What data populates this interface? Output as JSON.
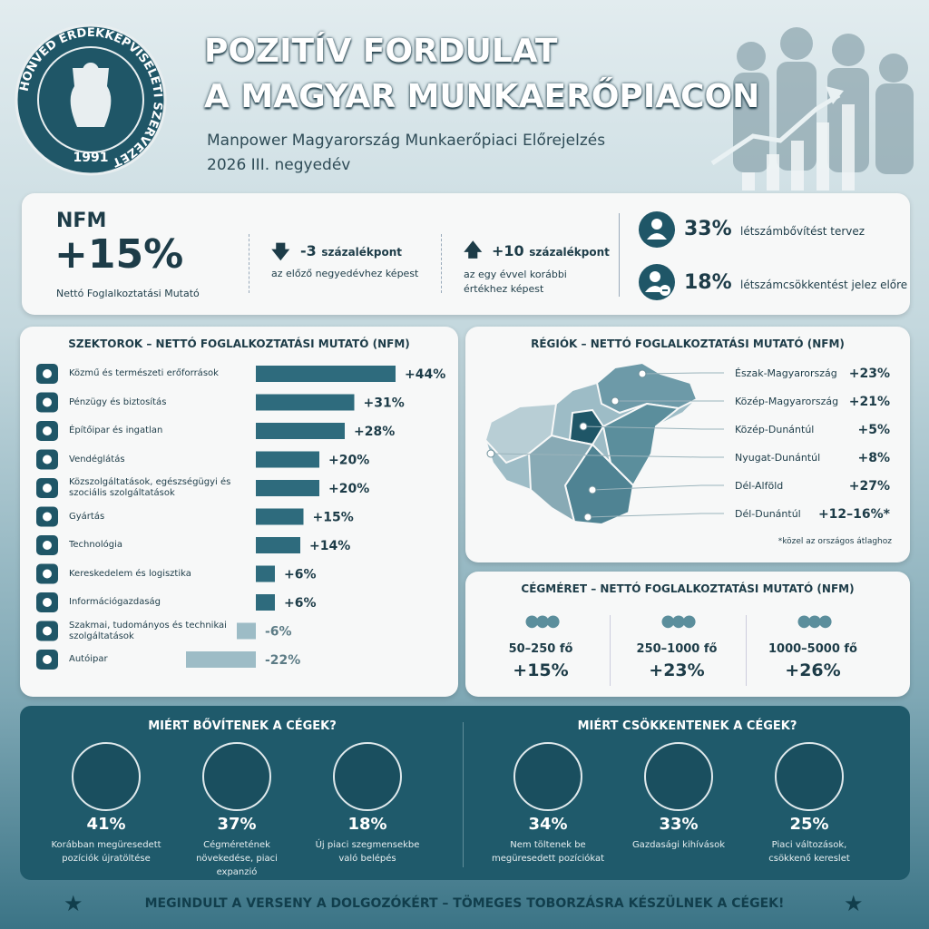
{
  "header": {
    "title_line1": "POZITÍV FORDULAT",
    "title_line2": "A MAGYAR MUNKAERŐPIACON",
    "subtitle_line1": "Manpower Magyarország Munkaerőpiaci Előrejelzés",
    "subtitle_line2": "2026 III. negyedév",
    "logo_text": "HONVÉD ÉRDEKKÉPVISELETI SZERVEZET",
    "logo_year": "1991"
  },
  "kpis": {
    "nfm_label": "NFM",
    "nfm_value": "+15%",
    "nfm_caption": "Nettó Foglalkoztatási Mutató",
    "change_quarter": {
      "value": "-3",
      "unit": "százalékpont",
      "caption": "az előző negyedévhez képest"
    },
    "change_year": {
      "value": "+10",
      "unit": "százalékpont",
      "caption": "az egy évvel korábbi értékhez képest"
    },
    "hire": {
      "value": "33%",
      "text": "létszámbővítést tervez"
    },
    "cut": {
      "value": "18%",
      "text": "létszámcsökkentést jelez előre"
    }
  },
  "chart_data": {
    "type": "bar",
    "orientation": "horizontal",
    "title": "SZEKTOROK – NETTÓ FOGLALKOZTATÁSI MUTATÓ (NFM)",
    "categories": [
      "Közmű és természeti erőforrások",
      "Pénzügy és biztosítás",
      "Építőipar és ingatlan",
      "Vendéglátás",
      "Közszolgáltatások, egészségügyi és szociális szolgáltatások",
      "Gyártás",
      "Technológia",
      "Kereskedelem és logisztika",
      "Információgazdaság",
      "Szakmai, tudományos és technikai szolgáltatások",
      "Autóipar"
    ],
    "values": [
      44,
      31,
      28,
      20,
      20,
      15,
      14,
      6,
      6,
      -6,
      -22
    ],
    "value_labels": [
      "+44%",
      "+31%",
      "+28%",
      "+20%",
      "+20%",
      "+15%",
      "+14%",
      "+6%",
      "+6%",
      "-6%",
      "-22%"
    ],
    "color": "#2e6b7d",
    "negative_color": "#9dbcc6"
  },
  "regions": {
    "title": "RÉGIÓK – NETTÓ FOGLALKOZTATÁSI MUTATÓ (NFM)",
    "items": [
      {
        "name": "Észak-Magyarország",
        "value": "+23%"
      },
      {
        "name": "Közép-Magyarország",
        "value": "+21%"
      },
      {
        "name": "Közép-Dunántúl",
        "value": "+5%"
      },
      {
        "name": "Nyugat-Dunántúl",
        "value": "+8%"
      },
      {
        "name": "Dél-Alföld",
        "value": "+27%"
      },
      {
        "name": "Dél-Dunántúl",
        "value": "+12–16%*"
      }
    ],
    "note": "*közel az országos átlaghoz"
  },
  "company_size": {
    "title": "CÉGMÉRET – NETTÓ FOGLALKOZTATÁSI MUTATÓ (NFM)",
    "items": [
      {
        "size": "50–250 fő",
        "value": "+15%"
      },
      {
        "size": "250–1000 fő",
        "value": "+23%"
      },
      {
        "size": "1000–5000 fő",
        "value": "+26%"
      }
    ]
  },
  "reasons": {
    "grow": {
      "title": "MIÉRT BŐVÍTENEK A CÉGEK?",
      "items": [
        {
          "value": "41%",
          "text": "Korábban megüresedett pozíciók újratöltése"
        },
        {
          "value": "37%",
          "text": "Cégméretének növekedése, piaci expanzió"
        },
        {
          "value": "18%",
          "text": "Új piaci szegmensekbe való belépés"
        }
      ]
    },
    "shrink": {
      "title": "MIÉRT CSÖKKENTENEK A CÉGEK?",
      "items": [
        {
          "value": "34%",
          "text": "Nem töltenek be megüresedett pozíciókat"
        },
        {
          "value": "33%",
          "text": "Gazdasági kihívások"
        },
        {
          "value": "25%",
          "text": "Piaci változások, csökkenő kereslet"
        }
      ]
    }
  },
  "footer": "MEGINDULT A VERSENY A DOLGOZÓKÉRT – TÖMEGES TOBORZÁSRA KÉSZÜLNEK A CÉGEK!"
}
